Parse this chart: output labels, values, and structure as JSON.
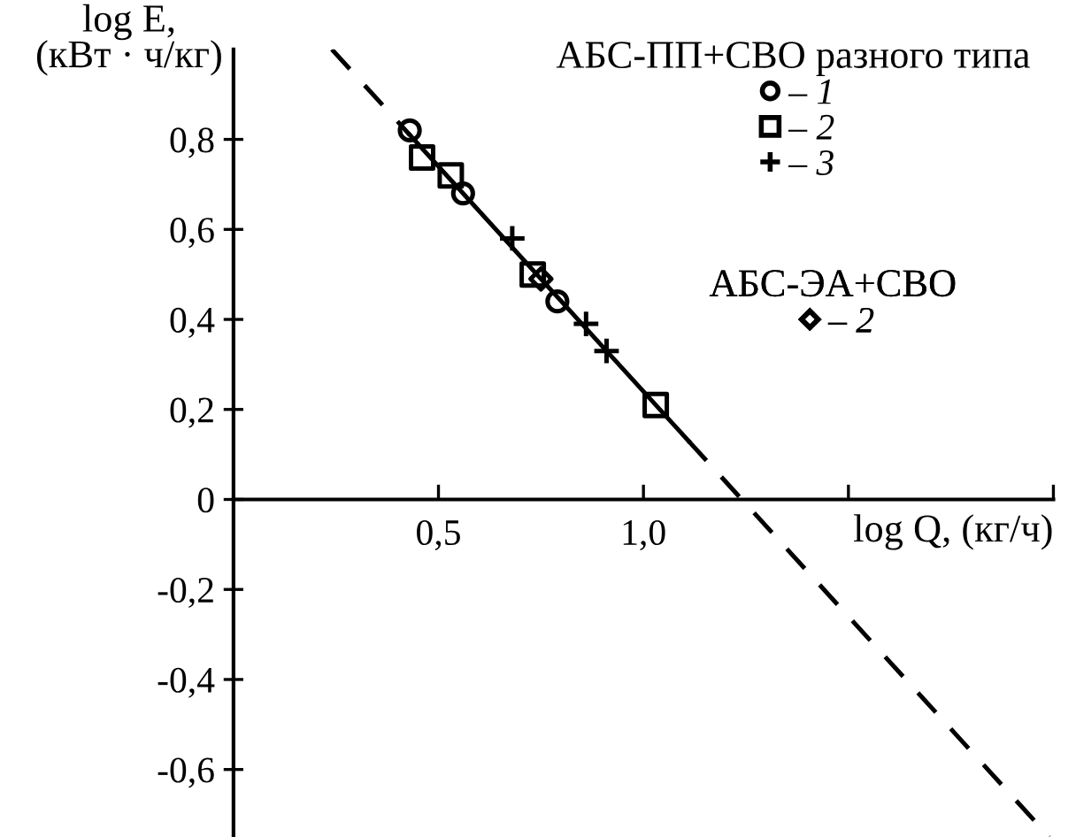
{
  "chart_data": {
    "type": "scatter",
    "xlabel": "log Q, (кг/ч)",
    "ylabel": "log E,\n(кВт · ч/кг)",
    "annotations": [
      "АБС-ПП+СВО разного типа",
      "АБС-ЭА+СВО"
    ],
    "series": [
      {
        "name": "– 1",
        "color": "#000000",
        "marker": "circle",
        "x": [
          0.43,
          0.56,
          0.79
        ],
        "values": [
          0.82,
          0.68,
          0.44
        ]
      },
      {
        "name": "– 2",
        "color": "#000000",
        "marker": "square",
        "x": [
          0.46,
          0.53,
          0.73,
          1.03
        ],
        "values": [
          0.76,
          0.72,
          0.5,
          0.21
        ]
      },
      {
        "name": "– 3",
        "color": "#000000",
        "marker": "cross",
        "x": [
          0.68,
          0.86,
          0.91
        ],
        "values": [
          0.58,
          0.39,
          0.33
        ]
      },
      {
        "name": "– 2",
        "color": "#000000",
        "marker": "diamond",
        "x": [
          0.75
        ],
        "values": [
          0.49
        ]
      },
      {
        "type": "line",
        "color": "#000000",
        "line_style": "dashed",
        "x": [
          0.24,
          0.43
        ],
        "values": [
          1.0,
          0.81
        ]
      },
      {
        "type": "line",
        "color": "#000000",
        "line_style": "solid",
        "x": [
          0.43,
          1.11
        ],
        "values": [
          0.81,
          0.13
        ]
      },
      {
        "type": "line",
        "color": "#000000",
        "line_style": "dashed",
        "x": [
          1.11,
          1.99
        ],
        "values": [
          0.13,
          -0.75
        ]
      }
    ],
    "xlim": [
      0,
      2.0
    ],
    "ylim": [
      -0.75,
      1.0
    ],
    "xticks": [
      {
        "value": 0.5,
        "label": "0,5"
      },
      {
        "value": 1.0,
        "label": "1,0"
      },
      {
        "value": 1.5,
        "label": null
      },
      {
        "value": 2.0,
        "label": null
      }
    ],
    "yticks": [
      {
        "value": -0.6,
        "label": "-0,6"
      },
      {
        "value": -0.4,
        "label": "-0,4"
      },
      {
        "value": -0.2,
        "label": "-0,2"
      },
      0,
      {
        "value": 0.2,
        "label": "0,2"
      },
      {
        "value": 0.4,
        "label": "0,4"
      },
      {
        "value": 0.6,
        "label": "0,6"
      },
      {
        "value": 0.8,
        "label": "0,8"
      }
    ],
    "grid": false,
    "legend": "top right"
  }
}
